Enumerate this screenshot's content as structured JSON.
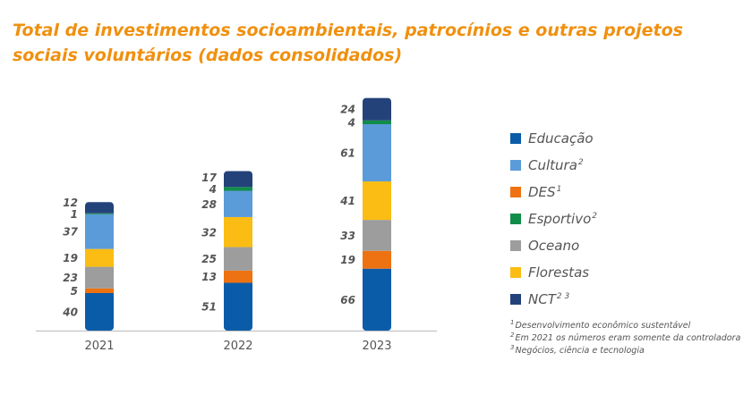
{
  "title": "Total de investimentos socioambientais, patrocínios e outras projetos sociais voluntários (dados consolidados)",
  "colors": {
    "title": "#f0900f",
    "axis": "#bbbbbb",
    "text": "#555555"
  },
  "chart_data": {
    "type": "bar",
    "stacked": true,
    "title": "Total de investimentos socioambientais, patrocínios e outras projetos sociais voluntários (dados consolidados)",
    "categories": [
      "2021",
      "2022",
      "2023"
    ],
    "series": [
      {
        "name": "Educação",
        "sup": "",
        "color": "#0b5ca8",
        "values": [
          40,
          51,
          66
        ]
      },
      {
        "name": "DES",
        "sup": "1",
        "color": "#ee7211",
        "values": [
          5,
          13,
          19
        ]
      },
      {
        "name": "Oceano",
        "sup": "",
        "color": "#9d9d9d",
        "values": [
          23,
          25,
          33
        ]
      },
      {
        "name": "Florestas",
        "sup": "",
        "color": "#fbbd13",
        "values": [
          19,
          32,
          41
        ]
      },
      {
        "name": "Cultura",
        "sup": "2",
        "color": "#5b9bd9",
        "values": [
          37,
          28,
          61
        ]
      },
      {
        "name": "Esportivo",
        "sup": "2",
        "color": "#118d4a",
        "values": [
          1,
          4,
          4
        ]
      },
      {
        "name": "NCT",
        "sup": "2 3",
        "color": "#24427a",
        "values": [
          12,
          17,
          24
        ]
      }
    ],
    "legend_order": [
      "Educação",
      "Cultura",
      "DES",
      "Esportivo",
      "Oceano",
      "Florestas",
      "NCT"
    ],
    "legend_position": "right",
    "grid": false
  },
  "footnotes": [
    {
      "num": "1",
      "text": "Desenvolvimento econômico sustentável"
    },
    {
      "num": "2",
      "text": "Em 2021 os números eram somente da controladora"
    },
    {
      "num": "3",
      "text": "Negócios, ciência e tecnologia"
    }
  ]
}
